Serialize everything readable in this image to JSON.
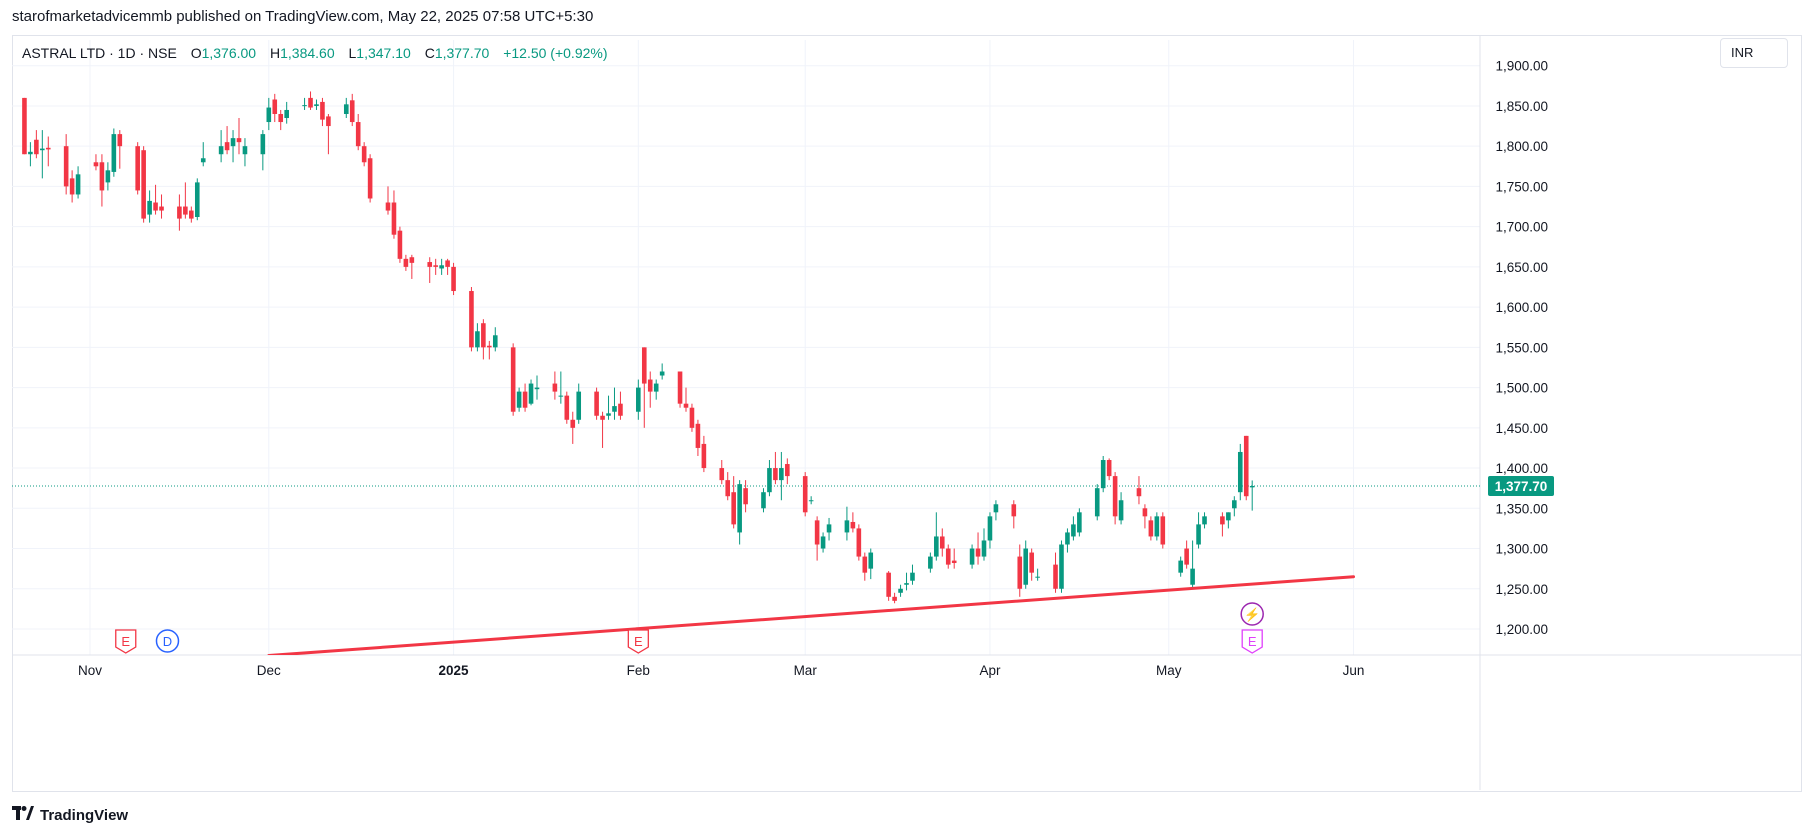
{
  "header": {
    "published_by": "starofmarketadvicemmb published on TradingView.com, May 22, 2025 07:58 UTC+5:30"
  },
  "legend": {
    "symbol": "ASTRAL LTD · 1D · NSE",
    "open_label": "O",
    "open": "1,376.00",
    "high_label": "H",
    "high": "1,384.60",
    "low_label": "L",
    "low": "1,347.10",
    "close_label": "C",
    "close": "1,377.70",
    "change": "+12.50 (+0.92%)"
  },
  "currency": "INR",
  "footer": {
    "logo_icon": "tradingview-logo-icon",
    "brand": "TradingView"
  },
  "colors": {
    "up": "#089981",
    "down": "#f23645",
    "trendline": "#f23645",
    "grid": "#f0f3fa",
    "text": "#131722"
  },
  "chart_data": {
    "type": "candlestick",
    "timeframe": "1D",
    "y_ticks": [
      "1,200.00",
      "1,250.00",
      "1,300.00",
      "1,350.00",
      "1,400.00",
      "1,450.00",
      "1,500.00",
      "1,550.00",
      "1,600.00",
      "1,650.00",
      "1,700.00",
      "1,750.00",
      "1,800.00",
      "1,850.00",
      "1,900.00"
    ],
    "ylim": [
      1170,
      1905
    ],
    "x_ticks": [
      {
        "label": "Nov",
        "day": 0,
        "bold": false
      },
      {
        "label": "Dec",
        "day": 30,
        "bold": false
      },
      {
        "label": "2025",
        "day": 61,
        "bold": true
      },
      {
        "label": "Feb",
        "day": 92,
        "bold": false
      },
      {
        "label": "Mar",
        "day": 120,
        "bold": false
      },
      {
        "label": "Apr",
        "day": 151,
        "bold": false
      },
      {
        "label": "May",
        "day": 181,
        "bold": false
      },
      {
        "label": "Jun",
        "day": 212,
        "bold": false
      }
    ],
    "xlim_days": [
      -11,
      212
    ],
    "last_price": "1,377.70",
    "last_price_value": 1377.7,
    "trendline": {
      "from": {
        "day": 30,
        "price": 1167
      },
      "to": {
        "day": 212,
        "price": 1265
      }
    },
    "events": [
      {
        "type": "earnings",
        "letter": "E",
        "day": 6,
        "color": "#f23645"
      },
      {
        "type": "dividend",
        "letter": "D",
        "day": 13,
        "color": "#2962ff"
      },
      {
        "type": "earnings",
        "letter": "E",
        "day": 92,
        "color": "#f23645"
      },
      {
        "type": "split",
        "letter": "⚡",
        "day": 195,
        "color": "#9c27b0"
      },
      {
        "type": "earnings",
        "letter": "E",
        "day": 195,
        "color": "#e040fb"
      }
    ],
    "candles": [
      {
        "d": -11,
        "o": 1860,
        "h": 1860,
        "l": 1790,
        "c": 1790
      },
      {
        "d": -10,
        "o": 1790,
        "h": 1805,
        "l": 1775,
        "c": 1793
      },
      {
        "d": -9,
        "o": 1808,
        "h": 1820,
        "l": 1785,
        "c": 1790
      },
      {
        "d": -8,
        "o": 1795,
        "h": 1820,
        "l": 1760,
        "c": 1797
      },
      {
        "d": -7,
        "o": 1798,
        "h": 1812,
        "l": 1775,
        "c": 1796
      },
      {
        "d": -4,
        "o": 1800,
        "h": 1815,
        "l": 1740,
        "c": 1750
      },
      {
        "d": -3,
        "o": 1760,
        "h": 1770,
        "l": 1730,
        "c": 1740
      },
      {
        "d": -2,
        "o": 1740,
        "h": 1775,
        "l": 1735,
        "c": 1765
      },
      {
        "d": 1,
        "o": 1780,
        "h": 1790,
        "l": 1770,
        "c": 1775
      },
      {
        "d": 2,
        "o": 1780,
        "h": 1790,
        "l": 1725,
        "c": 1745
      },
      {
        "d": 3,
        "o": 1755,
        "h": 1780,
        "l": 1745,
        "c": 1770
      },
      {
        "d": 4,
        "o": 1768,
        "h": 1822,
        "l": 1762,
        "c": 1815
      },
      {
        "d": 5,
        "o": 1815,
        "h": 1820,
        "l": 1772,
        "c": 1800
      },
      {
        "d": 8,
        "o": 1800,
        "h": 1805,
        "l": 1740,
        "c": 1745
      },
      {
        "d": 9,
        "o": 1795,
        "h": 1800,
        "l": 1705,
        "c": 1710
      },
      {
        "d": 10,
        "o": 1715,
        "h": 1745,
        "l": 1705,
        "c": 1732
      },
      {
        "d": 11,
        "o": 1730,
        "h": 1752,
        "l": 1715,
        "c": 1720
      },
      {
        "d": 12,
        "o": 1725,
        "h": 1740,
        "l": 1710,
        "c": 1720
      },
      {
        "d": 15,
        "o": 1725,
        "h": 1740,
        "l": 1695,
        "c": 1710
      },
      {
        "d": 16,
        "o": 1725,
        "h": 1755,
        "l": 1710,
        "c": 1715
      },
      {
        "d": 17,
        "o": 1720,
        "h": 1725,
        "l": 1705,
        "c": 1710
      },
      {
        "d": 18,
        "o": 1712,
        "h": 1760,
        "l": 1708,
        "c": 1755
      },
      {
        "d": 19,
        "o": 1780,
        "h": 1805,
        "l": 1775,
        "c": 1785
      },
      {
        "d": 22,
        "o": 1790,
        "h": 1820,
        "l": 1780,
        "c": 1800
      },
      {
        "d": 23,
        "o": 1805,
        "h": 1825,
        "l": 1790,
        "c": 1795
      },
      {
        "d": 24,
        "o": 1800,
        "h": 1820,
        "l": 1780,
        "c": 1810
      },
      {
        "d": 25,
        "o": 1810,
        "h": 1835,
        "l": 1790,
        "c": 1805
      },
      {
        "d": 26,
        "o": 1790,
        "h": 1810,
        "l": 1775,
        "c": 1800
      },
      {
        "d": 29,
        "o": 1790,
        "h": 1820,
        "l": 1770,
        "c": 1815
      },
      {
        "d": 30,
        "o": 1830,
        "h": 1860,
        "l": 1820,
        "c": 1848
      },
      {
        "d": 31,
        "o": 1858,
        "h": 1865,
        "l": 1830,
        "c": 1840
      },
      {
        "d": 32,
        "o": 1840,
        "h": 1845,
        "l": 1820,
        "c": 1830
      },
      {
        "d": 33,
        "o": 1835,
        "h": 1855,
        "l": 1828,
        "c": 1845
      },
      {
        "d": 36,
        "o": 1850,
        "h": 1860,
        "l": 1845,
        "c": 1851
      },
      {
        "d": 37,
        "o": 1860,
        "h": 1868,
        "l": 1845,
        "c": 1848
      },
      {
        "d": 38,
        "o": 1850,
        "h": 1858,
        "l": 1845,
        "c": 1852
      },
      {
        "d": 39,
        "o": 1855,
        "h": 1860,
        "l": 1825,
        "c": 1833
      },
      {
        "d": 40,
        "o": 1837,
        "h": 1840,
        "l": 1790,
        "c": 1825
      },
      {
        "d": 43,
        "o": 1840,
        "h": 1860,
        "l": 1835,
        "c": 1852
      },
      {
        "d": 44,
        "o": 1857,
        "h": 1865,
        "l": 1825,
        "c": 1830
      },
      {
        "d": 45,
        "o": 1830,
        "h": 1840,
        "l": 1795,
        "c": 1800
      },
      {
        "d": 46,
        "o": 1800,
        "h": 1805,
        "l": 1775,
        "c": 1780
      },
      {
        "d": 47,
        "o": 1785,
        "h": 1790,
        "l": 1730,
        "c": 1735
      },
      {
        "d": 50,
        "o": 1730,
        "h": 1750,
        "l": 1715,
        "c": 1720
      },
      {
        "d": 51,
        "o": 1730,
        "h": 1745,
        "l": 1685,
        "c": 1690
      },
      {
        "d": 52,
        "o": 1695,
        "h": 1700,
        "l": 1655,
        "c": 1660
      },
      {
        "d": 53,
        "o": 1660,
        "h": 1665,
        "l": 1645,
        "c": 1650
      },
      {
        "d": 54,
        "o": 1662,
        "h": 1665,
        "l": 1635,
        "c": 1655
      },
      {
        "d": 57,
        "o": 1656,
        "h": 1662,
        "l": 1630,
        "c": 1650
      },
      {
        "d": 58,
        "o": 1652,
        "h": 1660,
        "l": 1640,
        "c": 1650
      },
      {
        "d": 59,
        "o": 1648,
        "h": 1660,
        "l": 1640,
        "c": 1652
      },
      {
        "d": 60,
        "o": 1658,
        "h": 1660,
        "l": 1640,
        "c": 1650
      },
      {
        "d": 61,
        "o": 1650,
        "h": 1655,
        "l": 1615,
        "c": 1620
      },
      {
        "d": 64,
        "o": 1620,
        "h": 1625,
        "l": 1545,
        "c": 1550
      },
      {
        "d": 65,
        "o": 1550,
        "h": 1580,
        "l": 1545,
        "c": 1570
      },
      {
        "d": 66,
        "o": 1580,
        "h": 1585,
        "l": 1535,
        "c": 1550
      },
      {
        "d": 67,
        "o": 1552,
        "h": 1558,
        "l": 1535,
        "c": 1550
      },
      {
        "d": 68,
        "o": 1550,
        "h": 1575,
        "l": 1545,
        "c": 1565
      },
      {
        "d": 71,
        "o": 1550,
        "h": 1555,
        "l": 1465,
        "c": 1470
      },
      {
        "d": 72,
        "o": 1475,
        "h": 1500,
        "l": 1470,
        "c": 1495
      },
      {
        "d": 73,
        "o": 1495,
        "h": 1505,
        "l": 1470,
        "c": 1475
      },
      {
        "d": 74,
        "o": 1480,
        "h": 1510,
        "l": 1478,
        "c": 1505
      },
      {
        "d": 75,
        "o": 1498,
        "h": 1515,
        "l": 1485,
        "c": 1500
      },
      {
        "d": 78,
        "o": 1505,
        "h": 1520,
        "l": 1485,
        "c": 1495
      },
      {
        "d": 79,
        "o": 1490,
        "h": 1520,
        "l": 1480,
        "c": 1490
      },
      {
        "d": 80,
        "o": 1490,
        "h": 1495,
        "l": 1455,
        "c": 1460
      },
      {
        "d": 81,
        "o": 1460,
        "h": 1470,
        "l": 1430,
        "c": 1450
      },
      {
        "d": 82,
        "o": 1460,
        "h": 1505,
        "l": 1455,
        "c": 1495
      },
      {
        "d": 85,
        "o": 1495,
        "h": 1500,
        "l": 1460,
        "c": 1465
      },
      {
        "d": 86,
        "o": 1465,
        "h": 1470,
        "l": 1425,
        "c": 1460
      },
      {
        "d": 87,
        "o": 1465,
        "h": 1490,
        "l": 1460,
        "c": 1468
      },
      {
        "d": 88,
        "o": 1470,
        "h": 1500,
        "l": 1460,
        "c": 1477
      },
      {
        "d": 89,
        "o": 1480,
        "h": 1495,
        "l": 1460,
        "c": 1465
      },
      {
        "d": 92,
        "o": 1470,
        "h": 1510,
        "l": 1460,
        "c": 1500
      },
      {
        "d": 93,
        "o": 1550,
        "h": 1550,
        "l": 1450,
        "c": 1505
      },
      {
        "d": 94,
        "o": 1510,
        "h": 1520,
        "l": 1475,
        "c": 1495
      },
      {
        "d": 95,
        "o": 1495,
        "h": 1510,
        "l": 1485,
        "c": 1505
      },
      {
        "d": 96,
        "o": 1515,
        "h": 1530,
        "l": 1510,
        "c": 1520
      },
      {
        "d": 99,
        "o": 1520,
        "h": 1520,
        "l": 1475,
        "c": 1480
      },
      {
        "d": 100,
        "o": 1480,
        "h": 1500,
        "l": 1470,
        "c": 1475
      },
      {
        "d": 101,
        "o": 1475,
        "h": 1480,
        "l": 1445,
        "c": 1450
      },
      {
        "d": 102,
        "o": 1455,
        "h": 1460,
        "l": 1415,
        "c": 1425
      },
      {
        "d": 103,
        "o": 1430,
        "h": 1440,
        "l": 1395,
        "c": 1400
      },
      {
        "d": 106,
        "o": 1400,
        "h": 1410,
        "l": 1380,
        "c": 1385
      },
      {
        "d": 107,
        "o": 1385,
        "h": 1395,
        "l": 1360,
        "c": 1365
      },
      {
        "d": 108,
        "o": 1370,
        "h": 1390,
        "l": 1325,
        "c": 1330
      },
      {
        "d": 109,
        "o": 1320,
        "h": 1385,
        "l": 1305,
        "c": 1380
      },
      {
        "d": 110,
        "o": 1375,
        "h": 1385,
        "l": 1345,
        "c": 1355
      },
      {
        "d": 113,
        "o": 1350,
        "h": 1375,
        "l": 1345,
        "c": 1370
      },
      {
        "d": 114,
        "o": 1370,
        "h": 1410,
        "l": 1365,
        "c": 1400
      },
      {
        "d": 115,
        "o": 1400,
        "h": 1420,
        "l": 1380,
        "c": 1385
      },
      {
        "d": 116,
        "o": 1385,
        "h": 1420,
        "l": 1360,
        "c": 1400
      },
      {
        "d": 117,
        "o": 1405,
        "h": 1412,
        "l": 1380,
        "c": 1390
      },
      {
        "d": 120,
        "o": 1390,
        "h": 1395,
        "l": 1340,
        "c": 1345
      },
      {
        "d": 121,
        "o": 1360,
        "h": 1365,
        "l": 1355,
        "c": 1360
      },
      {
        "d": 122,
        "o": 1335,
        "h": 1340,
        "l": 1285,
        "c": 1305
      },
      {
        "d": 123,
        "o": 1300,
        "h": 1320,
        "l": 1295,
        "c": 1315
      },
      {
        "d": 124,
        "o": 1320,
        "h": 1338,
        "l": 1310,
        "c": 1330
      },
      {
        "d": 127,
        "o": 1320,
        "h": 1352,
        "l": 1310,
        "c": 1335
      },
      {
        "d": 128,
        "o": 1333,
        "h": 1345,
        "l": 1320,
        "c": 1325
      },
      {
        "d": 129,
        "o": 1325,
        "h": 1330,
        "l": 1285,
        "c": 1290
      },
      {
        "d": 130,
        "o": 1290,
        "h": 1295,
        "l": 1260,
        "c": 1270
      },
      {
        "d": 131,
        "o": 1275,
        "h": 1300,
        "l": 1262,
        "c": 1295
      },
      {
        "d": 134,
        "o": 1270,
        "h": 1272,
        "l": 1235,
        "c": 1240
      },
      {
        "d": 135,
        "o": 1240,
        "h": 1245,
        "l": 1232,
        "c": 1235
      },
      {
        "d": 136,
        "o": 1245,
        "h": 1255,
        "l": 1240,
        "c": 1250
      },
      {
        "d": 137,
        "o": 1255,
        "h": 1270,
        "l": 1248,
        "c": 1257
      },
      {
        "d": 138,
        "o": 1260,
        "h": 1280,
        "l": 1255,
        "c": 1270
      },
      {
        "d": 141,
        "o": 1275,
        "h": 1295,
        "l": 1270,
        "c": 1290
      },
      {
        "d": 142,
        "o": 1290,
        "h": 1345,
        "l": 1285,
        "c": 1315
      },
      {
        "d": 143,
        "o": 1315,
        "h": 1325,
        "l": 1290,
        "c": 1300
      },
      {
        "d": 144,
        "o": 1300,
        "h": 1305,
        "l": 1275,
        "c": 1280
      },
      {
        "d": 145,
        "o": 1285,
        "h": 1300,
        "l": 1275,
        "c": 1282
      },
      {
        "d": 148,
        "o": 1280,
        "h": 1305,
        "l": 1275,
        "c": 1300
      },
      {
        "d": 149,
        "o": 1300,
        "h": 1320,
        "l": 1280,
        "c": 1290
      },
      {
        "d": 150,
        "o": 1290,
        "h": 1325,
        "l": 1285,
        "c": 1310
      },
      {
        "d": 151,
        "o": 1310,
        "h": 1345,
        "l": 1300,
        "c": 1340
      },
      {
        "d": 152,
        "o": 1345,
        "h": 1360,
        "l": 1335,
        "c": 1355
      },
      {
        "d": 155,
        "o": 1355,
        "h": 1360,
        "l": 1325,
        "c": 1340
      },
      {
        "d": 156,
        "o": 1290,
        "h": 1305,
        "l": 1240,
        "c": 1250
      },
      {
        "d": 157,
        "o": 1255,
        "h": 1310,
        "l": 1250,
        "c": 1300
      },
      {
        "d": 158,
        "o": 1295,
        "h": 1300,
        "l": 1260,
        "c": 1270
      },
      {
        "d": 159,
        "o": 1265,
        "h": 1275,
        "l": 1260,
        "c": 1265
      },
      {
        "d": 162,
        "o": 1280,
        "h": 1295,
        "l": 1245,
        "c": 1250
      },
      {
        "d": 163,
        "o": 1250,
        "h": 1310,
        "l": 1245,
        "c": 1305
      },
      {
        "d": 164,
        "o": 1305,
        "h": 1325,
        "l": 1295,
        "c": 1320
      },
      {
        "d": 165,
        "o": 1315,
        "h": 1340,
        "l": 1310,
        "c": 1330
      },
      {
        "d": 166,
        "o": 1320,
        "h": 1350,
        "l": 1315,
        "c": 1345
      },
      {
        "d": 169,
        "o": 1340,
        "h": 1380,
        "l": 1335,
        "c": 1375
      },
      {
        "d": 170,
        "o": 1375,
        "h": 1415,
        "l": 1370,
        "c": 1410
      },
      {
        "d": 171,
        "o": 1410,
        "h": 1412,
        "l": 1385,
        "c": 1390
      },
      {
        "d": 172,
        "o": 1390,
        "h": 1395,
        "l": 1330,
        "c": 1340
      },
      {
        "d": 173,
        "o": 1335,
        "h": 1370,
        "l": 1330,
        "c": 1360
      },
      {
        "d": 176,
        "o": 1375,
        "h": 1390,
        "l": 1355,
        "c": 1365
      },
      {
        "d": 177,
        "o": 1350,
        "h": 1355,
        "l": 1325,
        "c": 1340
      },
      {
        "d": 178,
        "o": 1335,
        "h": 1340,
        "l": 1310,
        "c": 1315
      },
      {
        "d": 179,
        "o": 1315,
        "h": 1345,
        "l": 1310,
        "c": 1340
      },
      {
        "d": 180,
        "o": 1340,
        "h": 1345,
        "l": 1300,
        "c": 1305
      },
      {
        "d": 183,
        "o": 1270,
        "h": 1290,
        "l": 1265,
        "c": 1285
      },
      {
        "d": 184,
        "o": 1300,
        "h": 1310,
        "l": 1275,
        "c": 1280
      },
      {
        "d": 185,
        "o": 1255,
        "h": 1310,
        "l": 1250,
        "c": 1275
      },
      {
        "d": 186,
        "o": 1305,
        "h": 1345,
        "l": 1300,
        "c": 1330
      },
      {
        "d": 187,
        "o": 1330,
        "h": 1345,
        "l": 1325,
        "c": 1340
      },
      {
        "d": 190,
        "o": 1340,
        "h": 1345,
        "l": 1315,
        "c": 1330
      },
      {
        "d": 191,
        "o": 1335,
        "h": 1345,
        "l": 1325,
        "c": 1345
      },
      {
        "d": 192,
        "o": 1350,
        "h": 1365,
        "l": 1340,
        "c": 1360
      },
      {
        "d": 193,
        "o": 1370,
        "h": 1430,
        "l": 1360,
        "c": 1420
      },
      {
        "d": 194,
        "o": 1440,
        "h": 1440,
        "l": 1360,
        "c": 1365
      },
      {
        "d": 195,
        "o": 1376,
        "h": 1384.6,
        "l": 1347.1,
        "c": 1377.7
      }
    ]
  }
}
